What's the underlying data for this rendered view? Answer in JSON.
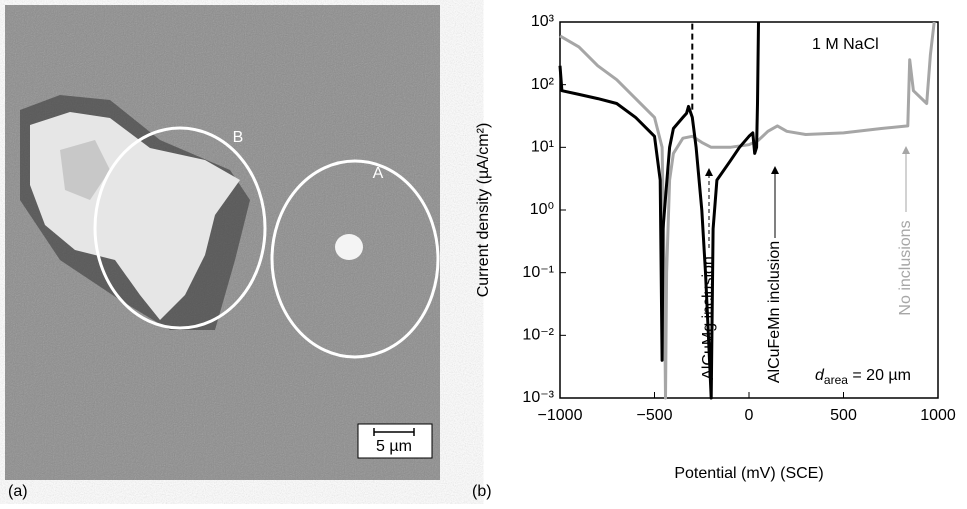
{
  "panel_a": {
    "label": "(a)",
    "region_b": "B",
    "region_a": "A",
    "scale_bar": "5 µm"
  },
  "chart_data": {
    "type": "line",
    "panel_label": "(b)",
    "x_label": "Potential (mV) (SCE)",
    "y_label": "Current density (µA/cm²)",
    "xlim": [
      -1000,
      1000
    ],
    "xticks": [
      {
        "value": -1000,
        "label": "−1000"
      },
      {
        "value": -500,
        "label": "−500"
      },
      0,
      500,
      1000
    ],
    "ylim": [
      0.001,
      1000
    ],
    "log_y": true,
    "yticks": [
      {
        "value": 0.001,
        "label": "10⁻³"
      },
      {
        "value": 0.01,
        "label": "10⁻²"
      },
      {
        "value": 0.1,
        "label": "10⁻¹"
      },
      {
        "value": 1,
        "label": "10⁰"
      },
      {
        "value": 10,
        "label": "10¹"
      },
      {
        "value": 100,
        "label": "10²"
      },
      {
        "value": 1000,
        "label": "10³"
      }
    ],
    "series": [
      {
        "color": "#a6a6a6",
        "dash": false,
        "x": [
          -1000,
          -900,
          -800,
          -700,
          -600,
          -500,
          -460,
          -448,
          -442,
          -436,
          -420,
          -400,
          -350,
          -300,
          -250,
          -200,
          -100,
          0,
          50,
          100,
          150,
          200,
          300,
          500,
          700,
          840,
          850,
          870,
          940,
          960,
          980
        ],
        "values": [
          600,
          400,
          200,
          120,
          60,
          30,
          10,
          0.1,
          0.001,
          0.1,
          3,
          8,
          14,
          15,
          12,
          10,
          10,
          11,
          13,
          18,
          22,
          18,
          16,
          17,
          20,
          22,
          250,
          80,
          50,
          300,
          1000
        ]
      },
      {
        "color": "#000000",
        "dash": false,
        "x": [
          -1000,
          -990,
          -900,
          -800,
          -700,
          -600,
          -500,
          -470,
          -460,
          -455,
          -420,
          -400,
          -350,
          -330,
          -320,
          -300,
          -280,
          -250,
          -230,
          -215,
          -200,
          -190,
          -170,
          -100,
          -50,
          0,
          20,
          30,
          40,
          45,
          50
        ],
        "values": [
          200,
          80,
          70,
          60,
          50,
          30,
          15,
          3,
          0.004,
          0.5,
          10,
          20,
          30,
          35,
          45,
          30,
          10,
          1,
          0.1,
          0.01,
          0.001,
          0.5,
          3,
          6,
          10,
          15,
          17,
          8,
          10,
          50,
          1000
        ]
      },
      {
        "color": "#000000",
        "dash": true,
        "x": [
          -300,
          -300
        ],
        "values": [
          40,
          1000
        ]
      }
    ],
    "annotations": {
      "electrolyte": "1 M NaCl",
      "inclusion_1": "AlCuMg inclusion",
      "inclusion_2": "AlCuFeMn inclusion",
      "none": "No inclusions",
      "area_symbol": "d",
      "area_sub": "area",
      "area_value": " = 20 µm"
    }
  }
}
